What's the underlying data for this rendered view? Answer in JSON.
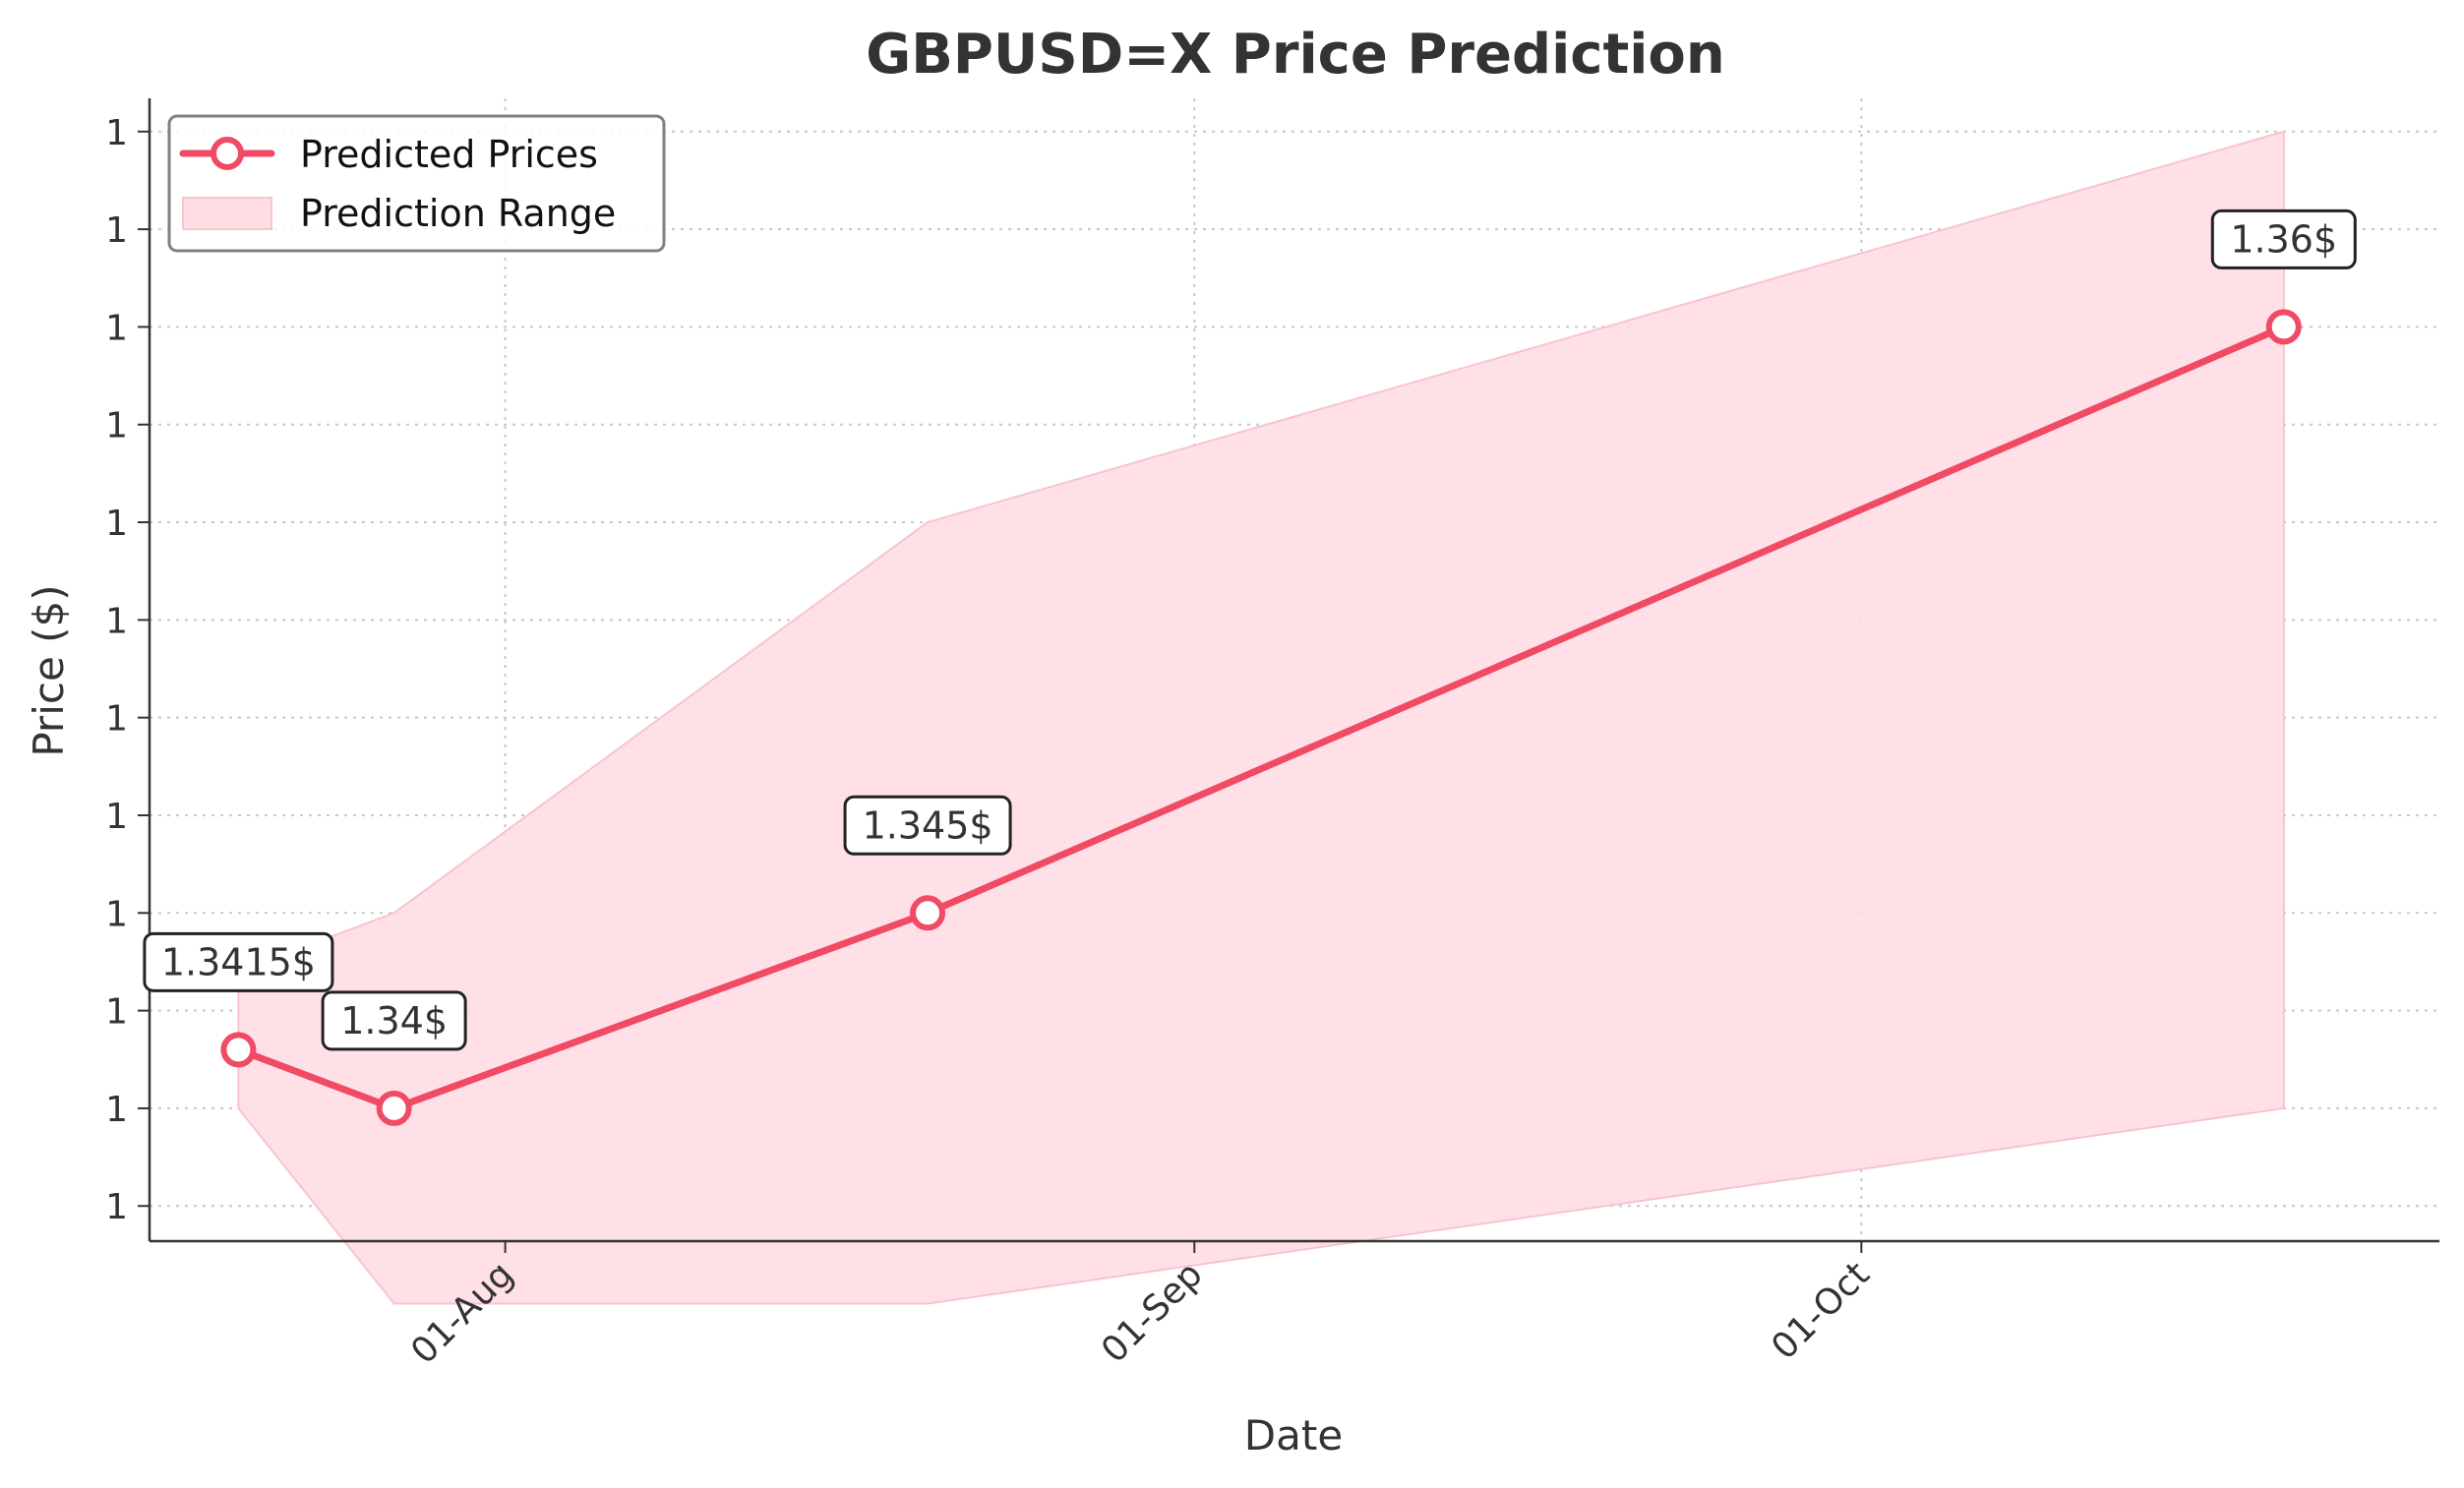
{
  "chart_data": {
    "type": "line",
    "title": "GBPUSD=X Price Prediction",
    "xlabel": "Date",
    "ylabel": "Price ($)",
    "x_ticks": [
      {
        "label": "01-Aug",
        "date": "2025-08-01"
      },
      {
        "label": "01-Sep",
        "date": "2025-09-01"
      },
      {
        "label": "01-Oct",
        "date": "2025-10-01"
      }
    ],
    "y_ticks": [
      {
        "label": "1",
        "value": 1.3375
      },
      {
        "label": "1",
        "value": 1.34
      },
      {
        "label": "1",
        "value": 1.3425
      },
      {
        "label": "1",
        "value": 1.345
      },
      {
        "label": "1",
        "value": 1.3475
      },
      {
        "label": "1",
        "value": 1.35
      },
      {
        "label": "1",
        "value": 1.3525
      },
      {
        "label": "1",
        "value": 1.355
      },
      {
        "label": "1",
        "value": 1.3575
      },
      {
        "label": "1",
        "value": 1.36
      },
      {
        "label": "1",
        "value": 1.3625
      },
      {
        "label": "1",
        "value": 1.365
      }
    ],
    "xlim": [
      "2025-07-16",
      "2025-10-27"
    ],
    "ylim": [
      1.3366,
      1.3658
    ],
    "grid": true,
    "legend_position": "top-left",
    "series": [
      {
        "name": "Predicted Prices",
        "color": "#f04a64",
        "points": [
          {
            "x": "2025-07-20",
            "y": 1.3415,
            "label": "1.3415$"
          },
          {
            "x": "2025-07-27",
            "y": 1.34,
            "label": "1.34$"
          },
          {
            "x": "2025-08-20",
            "y": 1.345,
            "label": "1.345$"
          },
          {
            "x": "2025-10-20",
            "y": 1.36,
            "label": "1.36$"
          }
        ]
      }
    ],
    "range": {
      "name": "Prediction Range",
      "color": "#ffdde3",
      "edge_color": "#f8c4cc",
      "upper": [
        {
          "x": "2025-07-20",
          "y": 1.3435
        },
        {
          "x": "2025-07-27",
          "y": 1.345
        },
        {
          "x": "2025-08-20",
          "y": 1.355
        },
        {
          "x": "2025-10-20",
          "y": 1.365
        }
      ],
      "lower": [
        {
          "x": "2025-07-20",
          "y": 1.34
        },
        {
          "x": "2025-07-27",
          "y": 1.335
        },
        {
          "x": "2025-08-20",
          "y": 1.335
        },
        {
          "x": "2025-10-20",
          "y": 1.34
        }
      ]
    }
  }
}
